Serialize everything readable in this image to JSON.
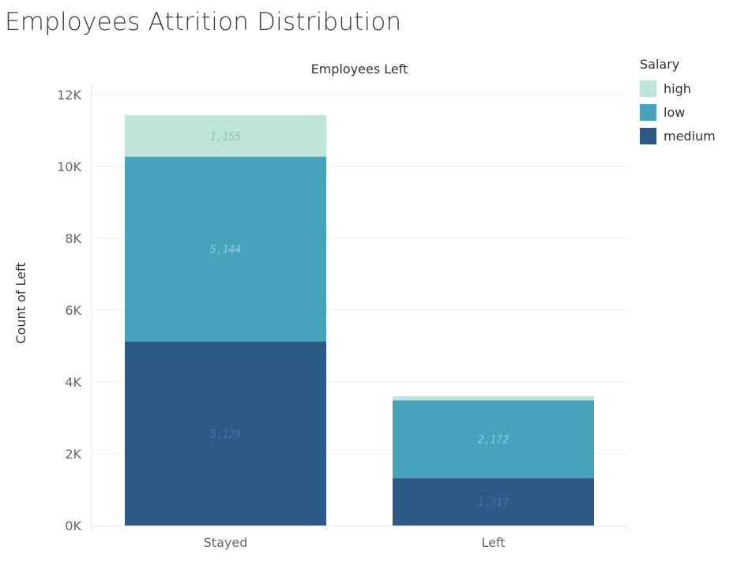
{
  "title": "Employees Attrition Distribution",
  "legend": {
    "title": "Salary",
    "items": [
      {
        "label": "high",
        "color": "#bde5d9"
      },
      {
        "label": "low",
        "color": "#46a3bb"
      },
      {
        "label": "medium",
        "color": "#2d5986"
      }
    ]
  },
  "chart_data": {
    "type": "bar",
    "stacked": true,
    "header": "Employees Left",
    "xlabel": "",
    "ylabel": "Count of Left",
    "categories": [
      "Stayed",
      "Left"
    ],
    "series": [
      {
        "name": "medium",
        "values": [
          5129,
          1317
        ],
        "labels": [
          "5,129",
          "1,317"
        ],
        "label_color": "#4473a6"
      },
      {
        "name": "low",
        "values": [
          5144,
          2172
        ],
        "labels": [
          "5,144",
          "2,172"
        ],
        "label_color": "#8ad0de"
      },
      {
        "name": "high",
        "values": [
          1155,
          112
        ],
        "labels": [
          "1,155",
          ""
        ],
        "label_color": "#8cbfb0"
      }
    ],
    "ylim": [
      0,
      12000
    ],
    "yticks": [
      0,
      2000,
      4000,
      6000,
      8000,
      10000,
      12000
    ],
    "ytick_labels": [
      "0K",
      "2K",
      "4K",
      "6K",
      "8K",
      "10K",
      "12K"
    ],
    "grid": true,
    "legend_position": "right"
  }
}
